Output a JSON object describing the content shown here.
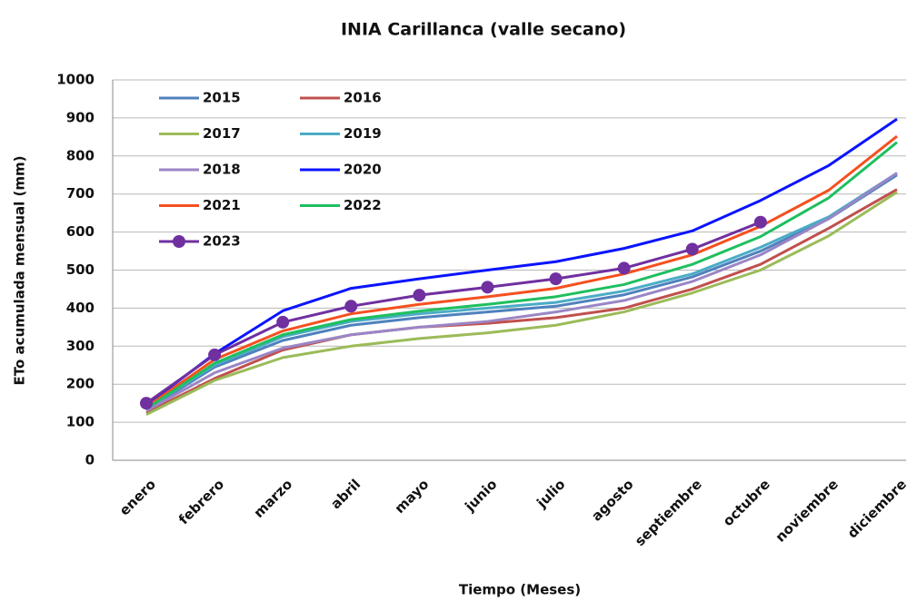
{
  "chart_data": {
    "type": "line",
    "title": "INIA Carillanca (valle secano)",
    "x_label": "Tiempo (Meses)",
    "y_label": "ETo acumulada mensual (mm)",
    "categories": [
      "enero",
      "febrero",
      "marzo",
      "abril",
      "mayo",
      "junio",
      "julio",
      "agosto",
      "septiembre",
      "octubre",
      "noviembre",
      "diciembre"
    ],
    "ylim": [
      0,
      1000
    ],
    "yticks": [
      0,
      100,
      200,
      300,
      400,
      500,
      600,
      700,
      800,
      900,
      1000
    ],
    "grid": true,
    "legend": "upper-left",
    "series": [
      {
        "name": "2015",
        "color": "#4f81bd",
        "values": [
          132,
          245,
          315,
          355,
          375,
          390,
          405,
          435,
          482,
          550,
          635,
          750
        ]
      },
      {
        "name": "2016",
        "color": "#c0504d",
        "values": [
          125,
          215,
          290,
          330,
          350,
          360,
          375,
          400,
          450,
          515,
          610,
          712
        ]
      },
      {
        "name": "2017",
        "color": "#9bbb59",
        "values": [
          120,
          210,
          270,
          300,
          320,
          335,
          355,
          390,
          440,
          500,
          590,
          705
        ]
      },
      {
        "name": "2019",
        "color": "#4bacc6",
        "values": [
          135,
          250,
          325,
          365,
          385,
          400,
          415,
          445,
          490,
          560,
          640,
          755
        ]
      },
      {
        "name": "2018",
        "color": "#9a86c6",
        "values": [
          130,
          230,
          295,
          330,
          350,
          365,
          390,
          420,
          470,
          540,
          635,
          755
        ]
      },
      {
        "name": "2020",
        "color": "#0a14ff",
        "values": [
          145,
          280,
          393,
          452,
          477,
          500,
          522,
          557,
          603,
          683,
          775,
          897
        ]
      },
      {
        "name": "2021",
        "color": "#f5501f",
        "values": [
          140,
          265,
          340,
          385,
          410,
          430,
          452,
          490,
          540,
          615,
          710,
          852
        ]
      },
      {
        "name": "2022",
        "color": "#1fbf5f",
        "values": [
          135,
          255,
          330,
          370,
          392,
          410,
          430,
          462,
          515,
          588,
          690,
          836
        ]
      },
      {
        "name": "2023",
        "color": "#7030a0",
        "marker": true,
        "values": [
          150,
          277,
          363,
          405,
          434,
          455,
          477,
          505,
          555,
          626,
          null,
          null
        ]
      }
    ]
  }
}
